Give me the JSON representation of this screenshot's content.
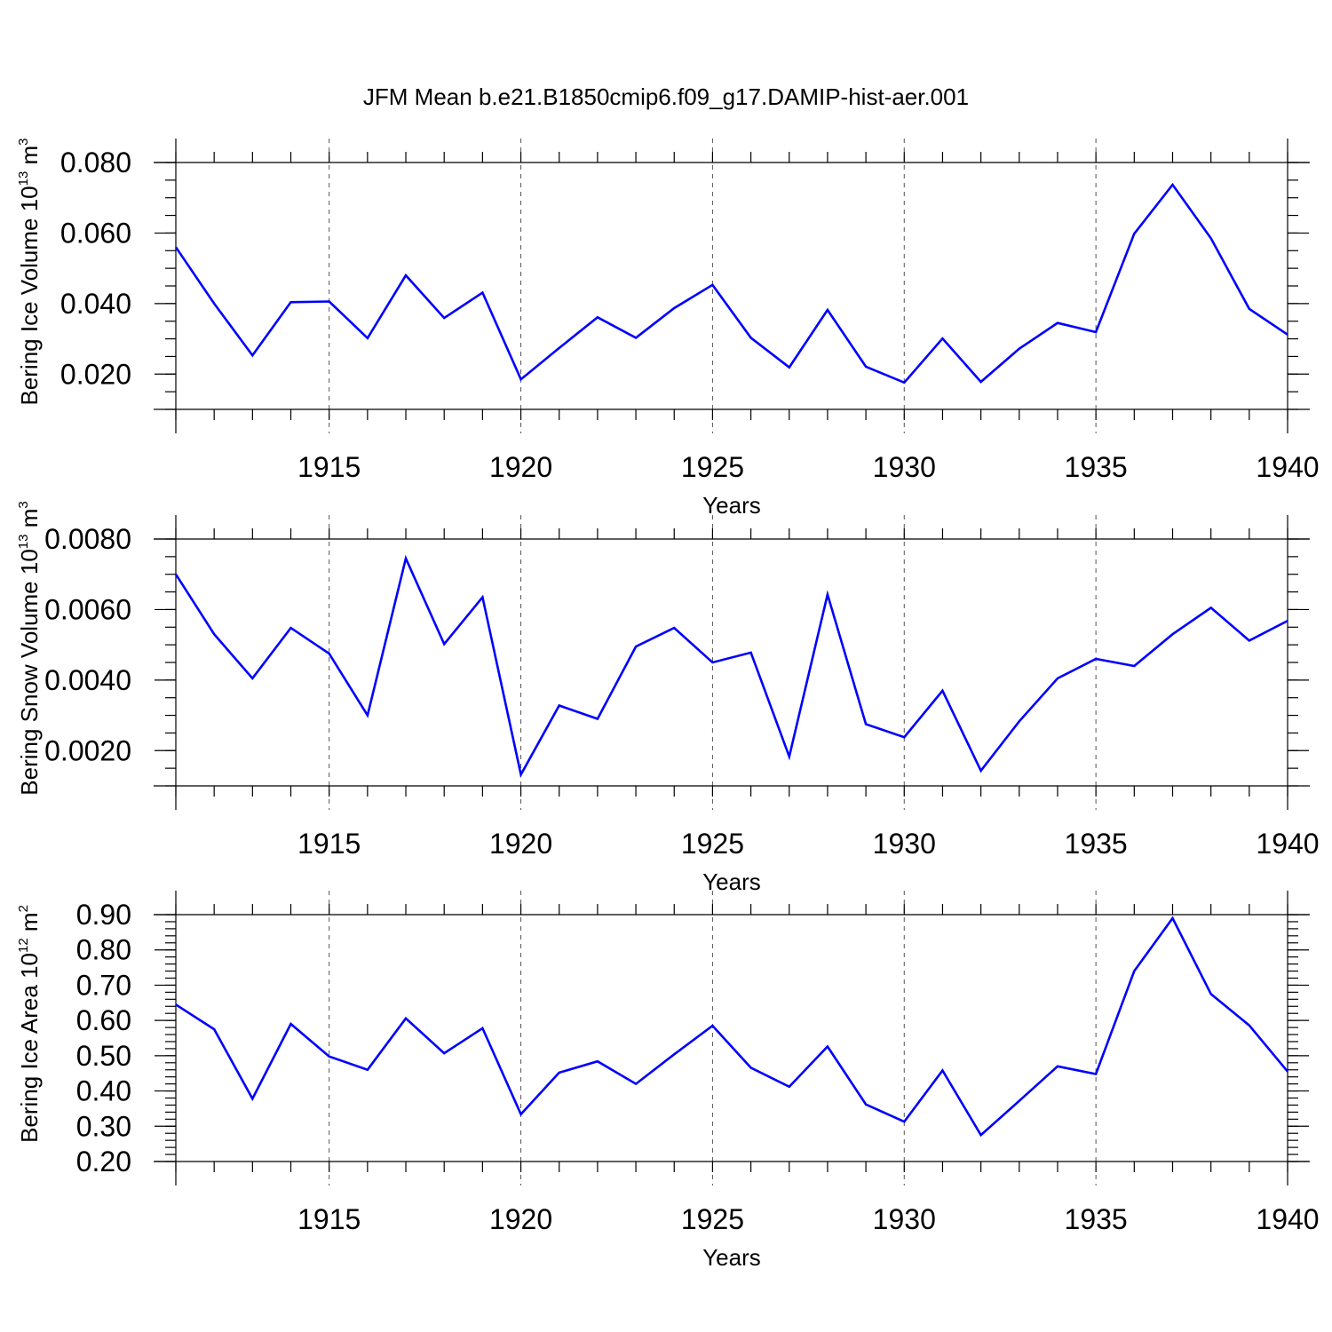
{
  "chart_data": {
    "title": "JFM Mean b.e21.B1850cmip6.f09_g17.DAMIP-hist-aer.001",
    "panels": [
      {
        "type": "line",
        "ylabel": "Bering Ice Volume 10",
        "ylabel_exp": "13",
        "ylabel_unit": " m",
        "ylabel_unit_exp": "3",
        "xlabel": "Years",
        "xlim": [
          1911,
          1940
        ],
        "ylim": [
          0.01,
          0.08
        ],
        "yticks": [
          0.02,
          0.04,
          0.06,
          0.08
        ],
        "ytick_labels": [
          "0.020",
          "0.040",
          "0.060",
          "0.080"
        ],
        "yminor_step": 0.005,
        "xticks": [
          1915,
          1920,
          1925,
          1930,
          1935,
          1940
        ],
        "xtick_labels": [
          "1915",
          "1920",
          "1925",
          "1930",
          "1935",
          "1940"
        ],
        "grid_x": [
          1915,
          1920,
          1925,
          1930,
          1935
        ],
        "series": [
          {
            "name": "Bering Ice Volume",
            "color": "#0000ff",
            "x": [
              1911,
              1912,
              1913,
              1914,
              1915,
              1916,
              1917,
              1918,
              1919,
              1920,
              1921,
              1922,
              1923,
              1924,
              1925,
              1926,
              1927,
              1928,
              1929,
              1930,
              1931,
              1932,
              1933,
              1934,
              1935,
              1936,
              1937,
              1938,
              1939,
              1940
            ],
            "values": [
              0.056,
              0.04,
              0.0253,
              0.0404,
              0.0406,
              0.0302,
              0.048,
              0.0359,
              0.0431,
              0.0185,
              0.0274,
              0.0361,
              0.0303,
              0.0387,
              0.0453,
              0.0303,
              0.0219,
              0.0382,
              0.0221,
              0.0176,
              0.0301,
              0.0178,
              0.0272,
              0.0345,
              0.0319,
              0.0598,
              0.0737,
              0.0585,
              0.0385,
              0.0312
            ]
          }
        ]
      },
      {
        "type": "line",
        "ylabel": "Bering Snow Volume 10",
        "ylabel_exp": "13",
        "ylabel_unit": " m",
        "ylabel_unit_exp": "3",
        "xlabel": "Years",
        "xlim": [
          1911,
          1940
        ],
        "ylim": [
          0.001,
          0.008
        ],
        "yticks": [
          0.002,
          0.004,
          0.006,
          0.008
        ],
        "ytick_labels": [
          "0.0020",
          "0.0040",
          "0.0060",
          "0.0080"
        ],
        "yminor_step": 0.0005,
        "xticks": [
          1915,
          1920,
          1925,
          1930,
          1935,
          1940
        ],
        "xtick_labels": [
          "1915",
          "1920",
          "1925",
          "1930",
          "1935",
          "1940"
        ],
        "grid_x": [
          1915,
          1920,
          1925,
          1930,
          1935
        ],
        "series": [
          {
            "name": "Bering Snow Volume",
            "color": "#0000ff",
            "x": [
              1911,
              1912,
              1913,
              1914,
              1915,
              1916,
              1917,
              1918,
              1919,
              1920,
              1921,
              1922,
              1923,
              1924,
              1925,
              1926,
              1927,
              1928,
              1929,
              1930,
              1931,
              1932,
              1933,
              1934,
              1935,
              1936,
              1937,
              1938,
              1939,
              1940
            ],
            "values": [
              0.007,
              0.0053,
              0.00405,
              0.00548,
              0.00475,
              0.003,
              0.00745,
              0.00502,
              0.00635,
              0.00132,
              0.00328,
              0.0029,
              0.00495,
              0.00548,
              0.0045,
              0.00478,
              0.00183,
              0.00643,
              0.00275,
              0.00238,
              0.0037,
              0.00143,
              0.00283,
              0.00405,
              0.0046,
              0.0044,
              0.0053,
              0.00605,
              0.00512,
              0.00568
            ]
          }
        ]
      },
      {
        "type": "line",
        "ylabel": "Bering Ice Area 10",
        "ylabel_exp": "12",
        "ylabel_unit": " m",
        "ylabel_unit_exp": "2",
        "xlabel": "Years",
        "xlim": [
          1911,
          1940
        ],
        "ylim": [
          0.2,
          0.9
        ],
        "yticks": [
          0.2,
          0.3,
          0.4,
          0.5,
          0.6,
          0.7,
          0.8,
          0.9
        ],
        "ytick_labels": [
          "0.20",
          "0.30",
          "0.40",
          "0.50",
          "0.60",
          "0.70",
          "0.80",
          "0.90"
        ],
        "yminor_step": 0.02,
        "xticks": [
          1915,
          1920,
          1925,
          1930,
          1935,
          1940
        ],
        "xtick_labels": [
          "1915",
          "1920",
          "1925",
          "1930",
          "1935",
          "1940"
        ],
        "grid_x": [
          1915,
          1920,
          1925,
          1930,
          1935
        ],
        "series": [
          {
            "name": "Bering Ice Area",
            "color": "#0000ff",
            "x": [
              1911,
              1912,
              1913,
              1914,
              1915,
              1916,
              1917,
              1918,
              1919,
              1920,
              1921,
              1922,
              1923,
              1924,
              1925,
              1926,
              1927,
              1928,
              1929,
              1930,
              1931,
              1932,
              1933,
              1934,
              1935,
              1936,
              1937,
              1938,
              1939,
              1940
            ],
            "values": [
              0.645,
              0.575,
              0.378,
              0.59,
              0.498,
              0.46,
              0.606,
              0.507,
              0.578,
              0.334,
              0.452,
              0.484,
              0.42,
              0.504,
              0.585,
              0.466,
              0.412,
              0.526,
              0.362,
              0.313,
              0.458,
              0.275,
              0.372,
              0.47,
              0.448,
              0.74,
              0.89,
              0.675,
              0.586,
              0.455
            ]
          }
        ]
      }
    ]
  }
}
